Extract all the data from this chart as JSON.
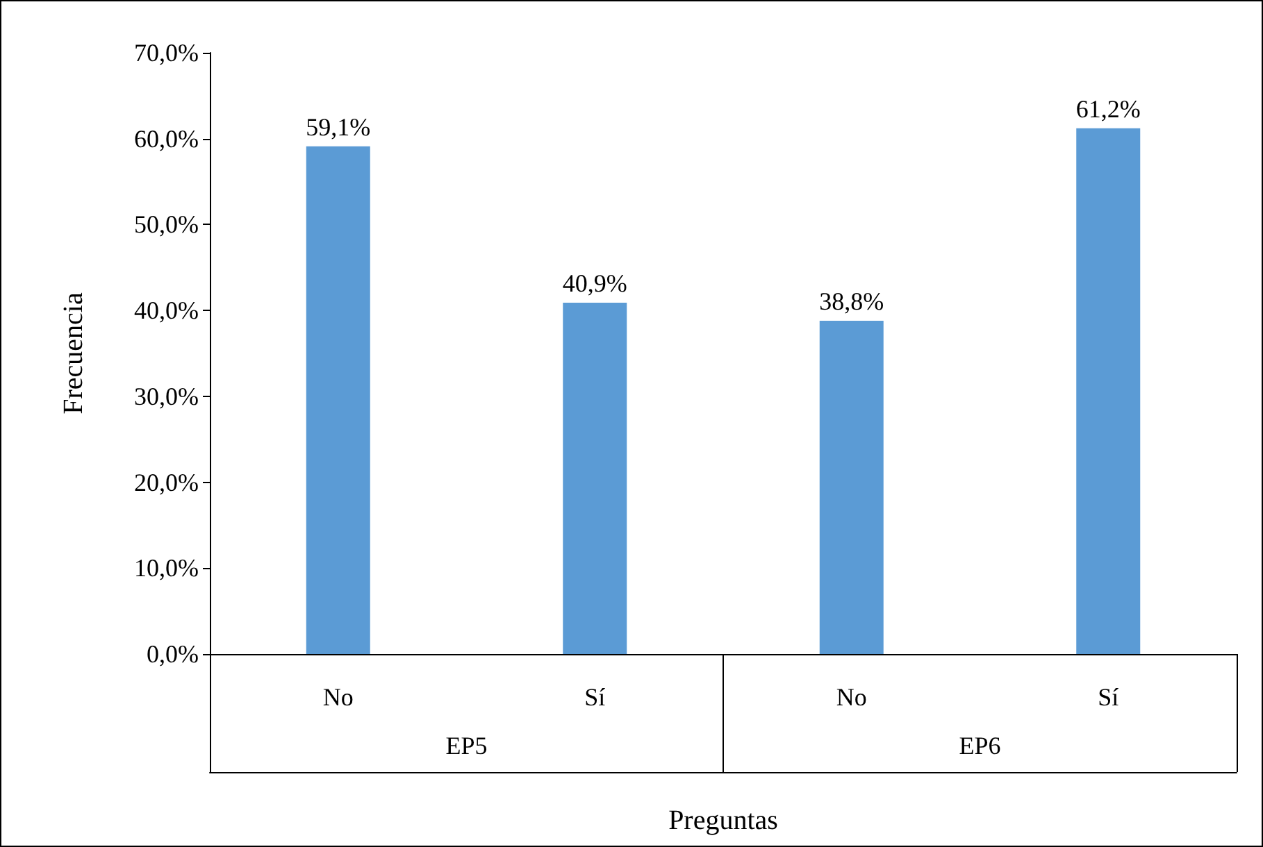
{
  "chart_data": {
    "type": "bar",
    "categories": [
      "No",
      "Sí",
      "No",
      "Sí"
    ],
    "annotations": [
      "EP5",
      "EP6"
    ],
    "values": [
      59.1,
      40.9,
      38.8,
      61.2
    ],
    "value_labels": [
      "59,1%",
      "40,9%",
      "38,8%",
      "61,2%"
    ],
    "color": "#5b9bd5",
    "xlabel": "Preguntas",
    "ylabel": "Frecuencia",
    "ylim": [
      0,
      70
    ],
    "yticks": [
      {
        "value": 0,
        "label": "0,0%"
      },
      {
        "value": 10,
        "label": "10,0%"
      },
      {
        "value": 20,
        "label": "20,0%"
      },
      {
        "value": 30,
        "label": "30,0%"
      },
      {
        "value": 40,
        "label": "40,0%"
      },
      {
        "value": 50,
        "label": "50,0%"
      },
      {
        "value": 60,
        "label": "60,0%"
      },
      {
        "value": 70,
        "label": "70,0%"
      }
    ],
    "grid": false
  }
}
